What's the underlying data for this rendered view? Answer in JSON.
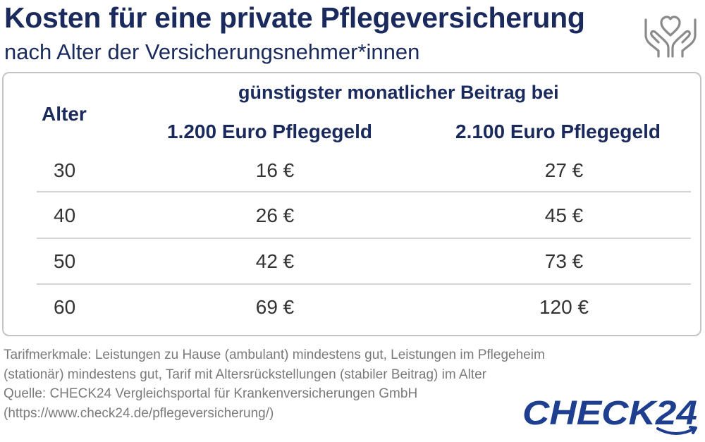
{
  "header": {
    "title": "Kosten für eine private Pflegeversicherung",
    "subtitle": "nach Alter der Versicherungsnehmer*innen",
    "icon": "hands-heart-icon"
  },
  "table": {
    "age_header": "Alter",
    "group_header": "günstigster monatlicher Beitrag bei",
    "col1_header": "1.200 Euro Pflegegeld",
    "col2_header": "2.100 Euro Pflegegeld",
    "rows": [
      {
        "age": "30",
        "v1": "16 €",
        "v2": "27 €"
      },
      {
        "age": "40",
        "v1": "26 €",
        "v2": "45 €"
      },
      {
        "age": "50",
        "v1": "42 €",
        "v2": "73 €"
      },
      {
        "age": "60",
        "v1": "69 €",
        "v2": "120 €"
      }
    ]
  },
  "footnote": {
    "line1": "Tarifmerkmale: Leistungen zu Hause (ambulant) mindestens gut, Leistungen im Pflegeheim",
    "line2": "(stationär) mindestens gut, Tarif mit Altersrückstellungen (stabiler Beitrag) im Alter",
    "line3": "Quelle: CHECK24 Vergleichsportal für Krankenversicherungen GmbH",
    "line4": "(https://www.check24.de/pflegeversicherung/)"
  },
  "logo": {
    "text": "CHECK24"
  },
  "colors": {
    "navy": "#1a2a5c",
    "logo_blue": "#1e3f8f",
    "border": "#c4c4c4",
    "text": "#333333",
    "note": "#7a7a7a"
  },
  "chart_data": {
    "type": "table",
    "title": "Kosten für eine private Pflegeversicherung",
    "subtitle": "nach Alter der Versicherungsnehmer*innen",
    "columns": [
      "Alter",
      "1.200 Euro Pflegegeld",
      "2.100 Euro Pflegegeld"
    ],
    "group_header": "günstigster monatlicher Beitrag bei",
    "unit": "€",
    "x": [
      30,
      40,
      50,
      60
    ],
    "series": [
      {
        "name": "1.200 Euro Pflegegeld",
        "values": [
          16,
          26,
          42,
          69
        ]
      },
      {
        "name": "2.100 Euro Pflegegeld",
        "values": [
          27,
          45,
          73,
          120
        ]
      }
    ]
  }
}
